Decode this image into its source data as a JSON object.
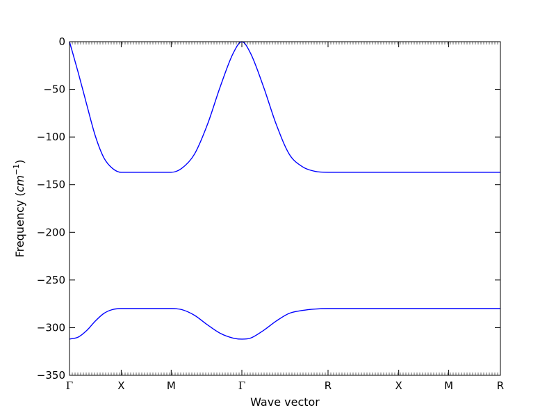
{
  "chart_data": {
    "type": "line",
    "title": "",
    "xlabel": "Wave vector",
    "ylabel": "Frequency",
    "ylabel_unit": "cm",
    "ylabel_unit_exp": "−1",
    "ylim": [
      -350,
      0
    ],
    "yticks": [
      0,
      -50,
      -100,
      -150,
      -200,
      -250,
      -300,
      -350
    ],
    "ytick_labels": [
      "0",
      "−50",
      "−100",
      "−150",
      "−200",
      "−250",
      "−300",
      "−350"
    ],
    "xlim": [
      0,
      5.0
    ],
    "xticks": [
      0,
      0.6,
      1.18,
      2.0,
      3.0,
      3.82,
      4.4,
      5.0
    ],
    "xtick_labels": [
      "Γ",
      "X",
      "M",
      "Γ",
      "R",
      "X",
      "M",
      "R"
    ],
    "grid": false,
    "line_color": "#0000ff",
    "series": [
      {
        "x": [
          0,
          0.1,
          0.2,
          0.3,
          0.4,
          0.5,
          0.6,
          1.18,
          1.3,
          1.45,
          1.6,
          1.75,
          1.9,
          2.0,
          2.1,
          2.25,
          2.4,
          2.55,
          2.7,
          2.85,
          3.0,
          3.82,
          4.4,
          5.0
        ],
        "values": [
          0,
          -32,
          -66,
          -99,
          -122,
          -133,
          -137,
          -137,
          -133,
          -118,
          -87,
          -47,
          -12,
          0,
          -12,
          -47,
          -87,
          -118,
          -131,
          -136,
          -137,
          -137,
          -137,
          -137
        ]
      },
      {
        "x": [
          0,
          0.1,
          0.2,
          0.3,
          0.4,
          0.5,
          0.6,
          1.18,
          1.3,
          1.45,
          1.6,
          1.75,
          1.9,
          2.0,
          2.1,
          2.25,
          2.4,
          2.55,
          2.7,
          2.85,
          3.0,
          3.82,
          4.4,
          5.0
        ],
        "values": [
          -312,
          -310,
          -303,
          -293,
          -285,
          -281,
          -280,
          -280,
          -281,
          -287,
          -297,
          -306,
          -311,
          -312,
          -311,
          -303,
          -293,
          -285,
          -282,
          -280.5,
          -280,
          -280,
          -280,
          -280
        ]
      }
    ]
  }
}
